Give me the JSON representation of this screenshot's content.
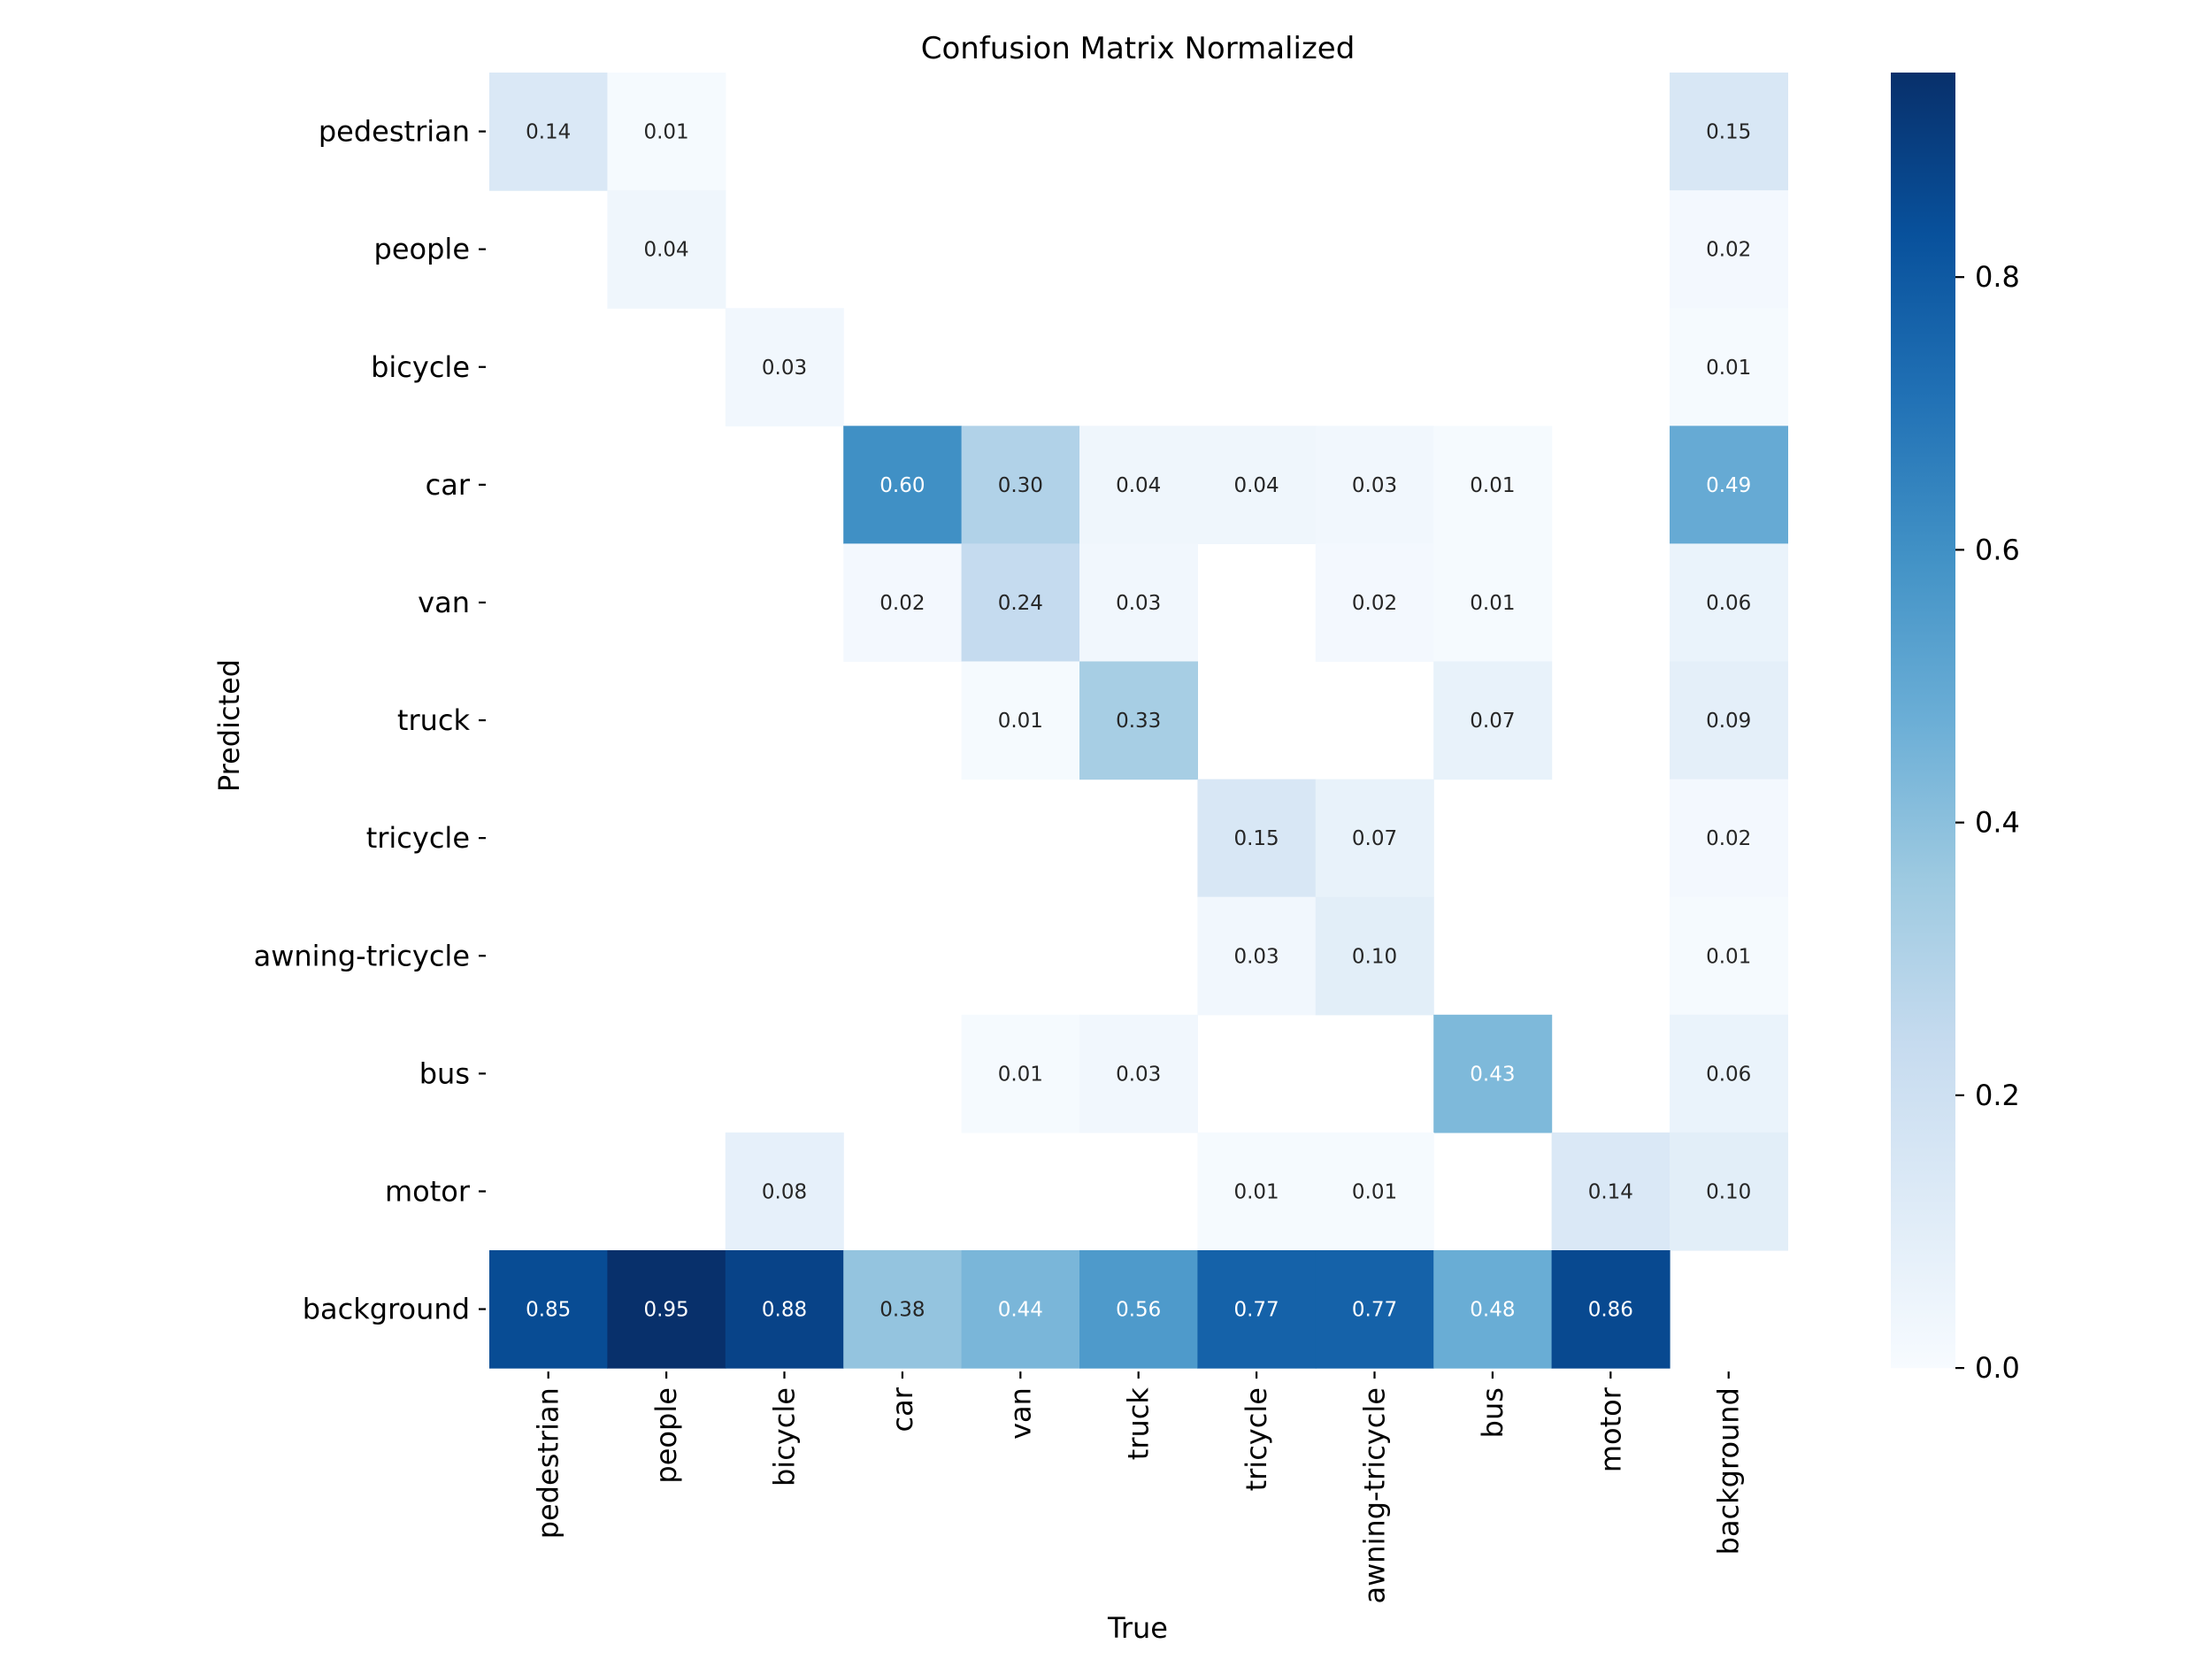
{
  "chart_data": {
    "type": "heatmap",
    "title": "Confusion Matrix Normalized",
    "xlabel": "True",
    "ylabel": "Predicted",
    "x_categories": [
      "pedestrian",
      "people",
      "bicycle",
      "car",
      "van",
      "truck",
      "tricycle",
      "awning-tricycle",
      "bus",
      "motor",
      "background"
    ],
    "y_categories": [
      "pedestrian",
      "people",
      "bicycle",
      "car",
      "van",
      "truck",
      "tricycle",
      "awning-tricycle",
      "bus",
      "motor",
      "background"
    ],
    "values": [
      [
        0.14,
        0.01,
        null,
        null,
        null,
        null,
        null,
        null,
        null,
        null,
        0.15
      ],
      [
        null,
        0.04,
        null,
        null,
        null,
        null,
        null,
        null,
        null,
        null,
        0.02
      ],
      [
        null,
        null,
        0.03,
        null,
        null,
        null,
        null,
        null,
        null,
        null,
        0.01
      ],
      [
        null,
        null,
        null,
        0.6,
        0.3,
        0.04,
        0.04,
        0.03,
        0.01,
        null,
        0.49
      ],
      [
        null,
        null,
        null,
        0.02,
        0.24,
        0.03,
        null,
        0.02,
        0.01,
        null,
        0.06
      ],
      [
        null,
        null,
        null,
        null,
        0.01,
        0.33,
        null,
        null,
        0.07,
        null,
        0.09
      ],
      [
        null,
        null,
        null,
        null,
        null,
        null,
        0.15,
        0.07,
        null,
        null,
        0.02
      ],
      [
        null,
        null,
        null,
        null,
        null,
        null,
        0.03,
        0.1,
        null,
        null,
        0.01
      ],
      [
        null,
        null,
        null,
        null,
        0.01,
        0.03,
        null,
        null,
        0.43,
        null,
        0.06
      ],
      [
        null,
        null,
        0.08,
        null,
        null,
        null,
        0.01,
        0.01,
        null,
        0.14,
        0.1
      ],
      [
        0.85,
        0.95,
        0.88,
        0.38,
        0.44,
        0.56,
        0.77,
        0.77,
        0.48,
        0.86,
        null
      ]
    ],
    "value_format": "0.00",
    "colormap": "Blues",
    "color_range": [
      0.0,
      0.95
    ],
    "colorbar_ticks": [
      0.0,
      0.2,
      0.4,
      0.6,
      0.8
    ],
    "colorbar_tick_labels": [
      "0.0",
      "0.2",
      "0.4",
      "0.6",
      "0.8"
    ],
    "colors": {
      "blues_stops": [
        "#f7fbff",
        "#deebf7",
        "#c6dbef",
        "#9ecae1",
        "#6baed6",
        "#4292c6",
        "#2171b5",
        "#08519c",
        "#08306b"
      ],
      "text_dark": "#262626",
      "text_light": "#ffffff"
    }
  }
}
